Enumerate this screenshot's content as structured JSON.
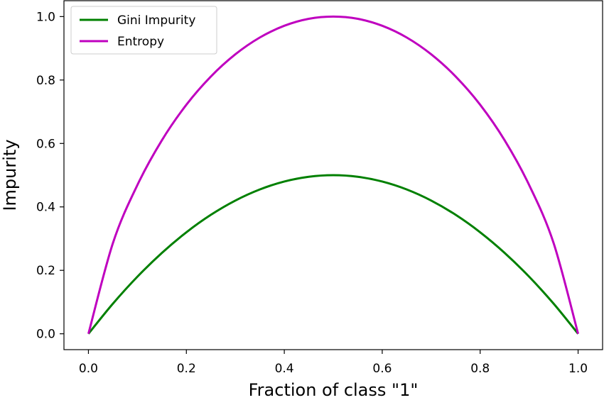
{
  "chart_data": {
    "type": "line",
    "title": "",
    "xlabel": "Fraction of class \"1\"",
    "ylabel": "Impurity",
    "xlim": [
      -0.05,
      1.05
    ],
    "ylim": [
      -0.05,
      1.05
    ],
    "grid": false,
    "legend_position": "top-left",
    "x_ticks": [
      "0.0",
      "0.2",
      "0.4",
      "0.6",
      "0.8",
      "1.0"
    ],
    "y_ticks": [
      "0.0",
      "0.2",
      "0.4",
      "0.6",
      "0.8",
      "1.0"
    ],
    "x": [
      0.0,
      0.05,
      0.1,
      0.15,
      0.2,
      0.25,
      0.3,
      0.35,
      0.4,
      0.45,
      0.5,
      0.55,
      0.6,
      0.65,
      0.7,
      0.75,
      0.8,
      0.85,
      0.9,
      0.95,
      1.0
    ],
    "series": [
      {
        "name": "Gini Impurity",
        "color": "#008000",
        "values": [
          0.0,
          0.095,
          0.18,
          0.255,
          0.32,
          0.375,
          0.42,
          0.455,
          0.48,
          0.495,
          0.5,
          0.495,
          0.48,
          0.455,
          0.42,
          0.375,
          0.32,
          0.255,
          0.18,
          0.095,
          0.0
        ]
      },
      {
        "name": "Entropy",
        "color": "#bf00bf",
        "values": [
          0.0,
          0.286,
          0.469,
          0.61,
          0.722,
          0.811,
          0.881,
          0.934,
          0.971,
          0.993,
          1.0,
          0.993,
          0.971,
          0.934,
          0.881,
          0.811,
          0.722,
          0.61,
          0.469,
          0.286,
          0.0
        ]
      }
    ]
  }
}
